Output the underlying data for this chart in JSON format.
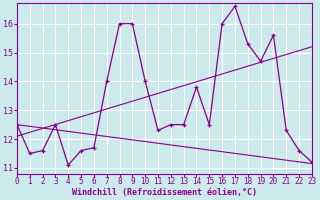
{
  "xlabel": "Windchill (Refroidissement éolien,°C)",
  "background_color": "#cce9ec",
  "grid_color": "#ffffff",
  "line_color": "#880088",
  "x_ticks": [
    0,
    1,
    2,
    3,
    4,
    5,
    6,
    7,
    8,
    9,
    10,
    11,
    12,
    13,
    14,
    15,
    16,
    17,
    18,
    19,
    20,
    21,
    22,
    23
  ],
  "y_ticks": [
    11,
    12,
    13,
    14,
    15,
    16
  ],
  "xlim": [
    0,
    23
  ],
  "ylim": [
    10.8,
    16.7
  ],
  "series1_x": [
    0,
    1,
    2,
    3,
    4,
    5,
    6,
    7,
    8,
    9,
    10,
    11,
    12,
    13,
    14,
    15,
    16,
    17,
    18,
    19,
    20,
    21,
    22,
    23
  ],
  "series1_y": [
    12.5,
    11.5,
    11.6,
    12.5,
    11.1,
    11.6,
    11.7,
    14.0,
    16.0,
    16.0,
    14.0,
    12.3,
    12.5,
    12.5,
    13.8,
    12.5,
    16.0,
    16.6,
    15.3,
    14.7,
    15.6,
    12.3,
    11.6,
    11.2
  ],
  "trend1_x": [
    0,
    23
  ],
  "trend1_y": [
    12.1,
    15.2
  ],
  "trend2_x": [
    0,
    23
  ],
  "trend2_y": [
    12.5,
    11.15
  ],
  "tick_fontsize": 5.5,
  "xlabel_fontsize": 6.0
}
